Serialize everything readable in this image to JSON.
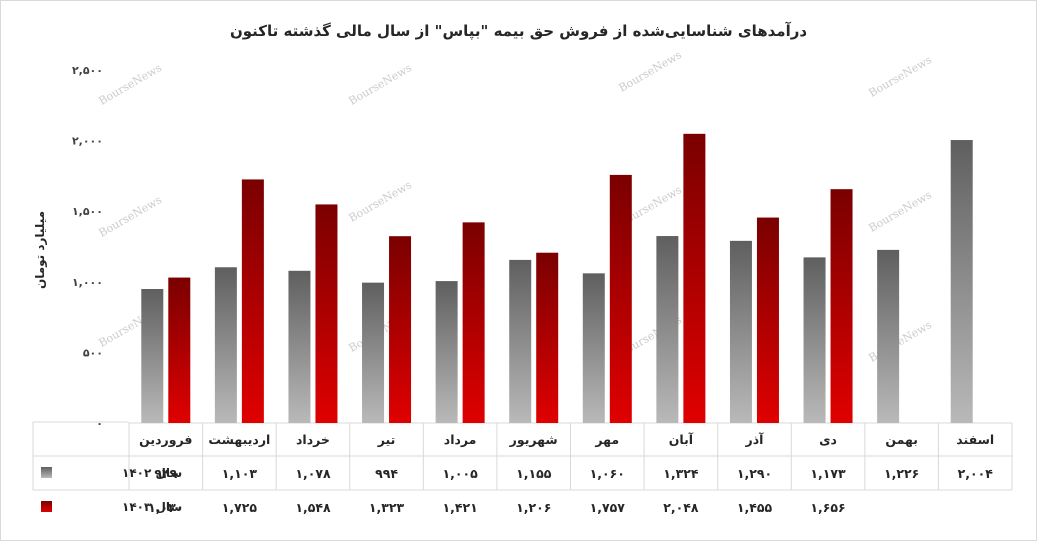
{
  "chart_data": {
    "type": "bar",
    "title": "درآمدهای شناسایی‌شده از فروش حق بیمه \"بپاس\" از سال مالی گذشته تاکنون",
    "ylabel": "میلیارد تومان",
    "ylim": [
      0,
      2500
    ],
    "yticks": [
      0,
      500,
      1000,
      1500,
      2000,
      2500
    ],
    "ytick_labels": [
      "۰",
      "۵۰۰",
      "۱,۰۰۰",
      "۱,۵۰۰",
      "۲,۰۰۰",
      "۲,۵۰۰"
    ],
    "categories": [
      "فروردین",
      "اردیبهشت",
      "خرداد",
      "تیر",
      "مرداد",
      "شهریور",
      "مهر",
      "آبان",
      "آذر",
      "دی",
      "بهمن",
      "اسفند"
    ],
    "series": [
      {
        "name": "سال ۱۴۰۲",
        "color": "#7f7f7f",
        "values": [
          949,
          1103,
          1078,
          994,
          1005,
          1155,
          1060,
          1324,
          1290,
          1173,
          1226,
          2004
        ],
        "labels": [
          "۹۴۹",
          "۱,۱۰۳",
          "۱,۰۷۸",
          "۹۹۴",
          "۱,۰۰۵",
          "۱,۱۵۵",
          "۱,۰۶۰",
          "۱,۳۲۴",
          "۱,۲۹۰",
          "۱,۱۷۳",
          "۱,۲۲۶",
          "۲,۰۰۴"
        ]
      },
      {
        "name": "سال ۱۴۰۳",
        "color": "#c00000",
        "values": [
          1030,
          1725,
          1548,
          1323,
          1421,
          1206,
          1757,
          2048,
          1455,
          1656,
          null,
          null
        ],
        "labels": [
          "۱,۰۳۰",
          "۱,۷۲۵",
          "۱,۵۴۸",
          "۱,۳۲۳",
          "۱,۴۲۱",
          "۱,۲۰۶",
          "۱,۷۵۷",
          "۲,۰۴۸",
          "۱,۴۵۵",
          "۱,۶۵۶",
          "",
          ""
        ]
      }
    ],
    "grid": false,
    "legend": "data-table",
    "watermark": "BourseNews"
  }
}
